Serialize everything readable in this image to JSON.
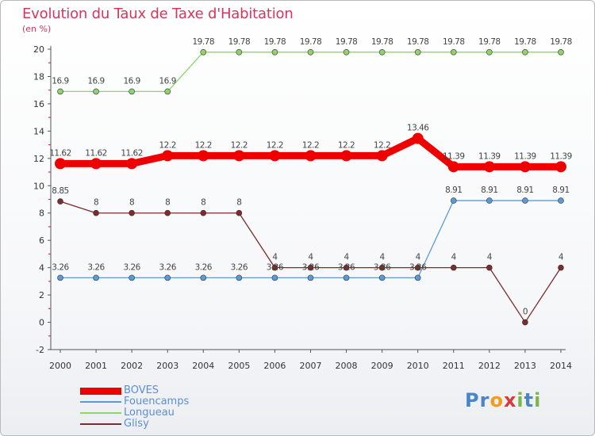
{
  "title": "Evolution du Taux de Taxe d'Habitation",
  "unit": "(en %)",
  "logo": "Proxiti",
  "chart_data": {
    "type": "line",
    "x": [
      "2000",
      "2001",
      "2002",
      "2003",
      "2004",
      "2005",
      "2006",
      "2007",
      "2008",
      "2009",
      "2010",
      "2011",
      "2012",
      "2013",
      "2014"
    ],
    "ylim": [
      -2,
      20
    ],
    "yticks": [
      -2,
      0,
      2,
      4,
      6,
      8,
      10,
      12,
      14,
      16,
      18,
      20
    ],
    "grid": false,
    "legend_position": "bottom-left",
    "series": [
      {
        "name": "BOVES",
        "color": "#ee0000",
        "width": 9,
        "marker": 7,
        "values": [
          11.62,
          11.62,
          11.62,
          12.2,
          12.2,
          12.2,
          12.2,
          12.2,
          12.2,
          12.2,
          13.46,
          11.39,
          11.39,
          11.39,
          11.39
        ],
        "labels": [
          "11.62",
          "11.62",
          "11.62",
          "12.2",
          "12.2",
          "12.2",
          "12.2",
          "12.2",
          "12.2",
          "12.2",
          "13.46",
          "11.39",
          "11.39",
          "11.39",
          "11.39"
        ]
      },
      {
        "name": "Fouencamps",
        "color": "#5b9bd5",
        "width": 1.3,
        "marker": 3.5,
        "values": [
          3.26,
          3.26,
          3.26,
          3.26,
          3.26,
          3.26,
          3.26,
          3.26,
          3.26,
          3.26,
          3.26,
          8.91,
          8.91,
          8.91,
          8.91
        ],
        "labels": [
          "3.26",
          "3.26",
          "3.26",
          "3.26",
          "3.26",
          "3.26",
          "3.26",
          "3.26",
          "3.26",
          "3.26",
          "3.26",
          "8.91",
          "8.91",
          "8.91",
          "8.91"
        ]
      },
      {
        "name": "Longueau",
        "color": "#8fd36a",
        "width": 1.3,
        "marker": 3.5,
        "values": [
          16.9,
          16.9,
          16.9,
          16.9,
          19.78,
          19.78,
          19.78,
          19.78,
          19.78,
          19.78,
          19.78,
          19.78,
          19.78,
          19.78,
          19.78
        ],
        "labels": [
          "16.9",
          "16.9",
          "16.9",
          "16.9",
          "19.78",
          "19.78",
          "19.78",
          "19.78",
          "19.78",
          "19.78",
          "19.78",
          "19.78",
          "19.78",
          "19.78",
          "19.78"
        ]
      },
      {
        "name": "Glisy",
        "color": "#7b2c2c",
        "width": 1.3,
        "marker": 3.5,
        "values": [
          8.85,
          8,
          8,
          8,
          8,
          8,
          4,
          4,
          4,
          4,
          4,
          4,
          4,
          0,
          4
        ],
        "labels": [
          "8.85",
          "8",
          "8",
          "8",
          "8",
          "8",
          "4",
          "4",
          "4",
          "4",
          "4",
          "4",
          "4",
          "0",
          "4"
        ]
      }
    ]
  }
}
